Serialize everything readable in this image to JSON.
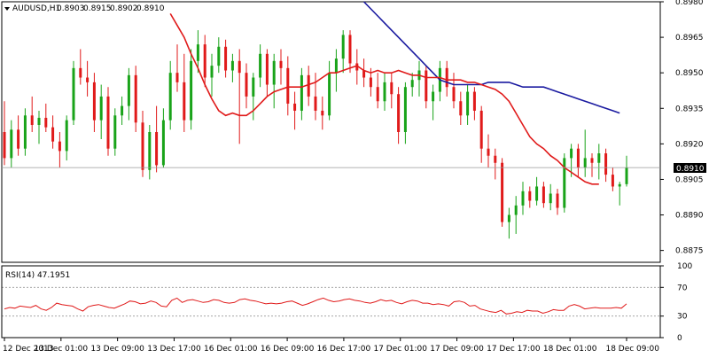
{
  "chart_data": {
    "type": "candlestick",
    "header": {
      "symbol": "AUDUSD,H1",
      "open": "0.8903",
      "high": "0.8915",
      "low": "0.8902",
      "close": "0.8910"
    },
    "price_axis": {
      "ylim": [
        0.887,
        0.898
      ],
      "ticks": [
        "0.8980",
        "0.8965",
        "0.8950",
        "0.8935",
        "0.8920",
        "0.8905",
        "0.8890",
        "0.8875"
      ]
    },
    "current_price": {
      "label": "0.8910",
      "value": 0.891
    },
    "x_labels": [
      "12 Dec 2013",
      "13 Dec 01:00",
      "13 Dec 09:00",
      "13 Dec 17:00",
      "16 Dec 01:00",
      "16 Dec 09:00",
      "16 Dec 17:00",
      "17 Dec 01:00",
      "17 Dec 09:00",
      "17 Dec 17:00",
      "18 Dec 01:00",
      "18 Dec 09:00"
    ],
    "colors": {
      "bull": "#19a319",
      "bear": "#e01a1a",
      "ma_fast": "#e01a1a",
      "ma_slow": "#1a1aa0",
      "rsi": "#e01a1a",
      "grid": "#999999"
    },
    "candles": [
      [
        0.8925,
        0.8938,
        0.8911,
        0.8914
      ],
      [
        0.8914,
        0.893,
        0.891,
        0.8926
      ],
      [
        0.8926,
        0.8932,
        0.8915,
        0.8918
      ],
      [
        0.8918,
        0.8935,
        0.8915,
        0.8932
      ],
      [
        0.8932,
        0.894,
        0.8925,
        0.8928
      ],
      [
        0.8928,
        0.8934,
        0.892,
        0.8931
      ],
      [
        0.8931,
        0.8937,
        0.8925,
        0.8927
      ],
      [
        0.8927,
        0.8932,
        0.8918,
        0.8921
      ],
      [
        0.8921,
        0.8925,
        0.891,
        0.8917
      ],
      [
        0.8917,
        0.8932,
        0.8913,
        0.893
      ],
      [
        0.893,
        0.8955,
        0.8928,
        0.8952
      ],
      [
        0.8952,
        0.896,
        0.8945,
        0.8948
      ],
      [
        0.8948,
        0.8955,
        0.894,
        0.8946
      ],
      [
        0.8946,
        0.895,
        0.8925,
        0.893
      ],
      [
        0.893,
        0.8945,
        0.8922,
        0.894
      ],
      [
        0.894,
        0.8944,
        0.8915,
        0.8918
      ],
      [
        0.8918,
        0.8935,
        0.8915,
        0.8932
      ],
      [
        0.8932,
        0.894,
        0.8928,
        0.8936
      ],
      [
        0.8936,
        0.8952,
        0.893,
        0.8949
      ],
      [
        0.8949,
        0.8953,
        0.8925,
        0.8929
      ],
      [
        0.8929,
        0.8934,
        0.8906,
        0.8909
      ],
      [
        0.8909,
        0.8928,
        0.8905,
        0.8925
      ],
      [
        0.8925,
        0.8936,
        0.8908,
        0.8911
      ],
      [
        0.8911,
        0.8935,
        0.891,
        0.893
      ],
      [
        0.893,
        0.8955,
        0.8926,
        0.895
      ],
      [
        0.895,
        0.8962,
        0.8942,
        0.8946
      ],
      [
        0.8946,
        0.8958,
        0.8925,
        0.893
      ],
      [
        0.893,
        0.896,
        0.8926,
        0.8955
      ],
      [
        0.8955,
        0.8968,
        0.895,
        0.8962
      ],
      [
        0.8962,
        0.8966,
        0.8944,
        0.8948
      ],
      [
        0.8948,
        0.8958,
        0.894,
        0.8953
      ],
      [
        0.8953,
        0.8965,
        0.895,
        0.8961
      ],
      [
        0.8961,
        0.8964,
        0.8948,
        0.8951
      ],
      [
        0.8951,
        0.8958,
        0.8946,
        0.8955
      ],
      [
        0.8955,
        0.896,
        0.892,
        0.895
      ],
      [
        0.895,
        0.8954,
        0.8935,
        0.894
      ],
      [
        0.894,
        0.895,
        0.893,
        0.8948
      ],
      [
        0.8948,
        0.8962,
        0.8944,
        0.8958
      ],
      [
        0.8958,
        0.896,
        0.894,
        0.8945
      ],
      [
        0.8945,
        0.8958,
        0.8935,
        0.8955
      ],
      [
        0.8955,
        0.896,
        0.8945,
        0.8952
      ],
      [
        0.8952,
        0.8957,
        0.8932,
        0.8937
      ],
      [
        0.8937,
        0.8942,
        0.8926,
        0.8934
      ],
      [
        0.8934,
        0.8952,
        0.893,
        0.8949
      ],
      [
        0.8949,
        0.8953,
        0.8936,
        0.894
      ],
      [
        0.894,
        0.895,
        0.893,
        0.8934
      ],
      [
        0.8934,
        0.894,
        0.8926,
        0.8932
      ],
      [
        0.8932,
        0.8955,
        0.893,
        0.895
      ],
      [
        0.895,
        0.896,
        0.8942,
        0.8956
      ],
      [
        0.8956,
        0.8968,
        0.895,
        0.8966
      ],
      [
        0.8966,
        0.8968,
        0.895,
        0.8954
      ],
      [
        0.8954,
        0.896,
        0.8945,
        0.8951
      ],
      [
        0.8951,
        0.8956,
        0.8944,
        0.8948
      ],
      [
        0.8948,
        0.8952,
        0.894,
        0.8944
      ],
      [
        0.8944,
        0.895,
        0.8935,
        0.8938
      ],
      [
        0.8938,
        0.895,
        0.8934,
        0.8946
      ],
      [
        0.8946,
        0.895,
        0.8935,
        0.8941
      ],
      [
        0.8941,
        0.8944,
        0.892,
        0.8925
      ],
      [
        0.8925,
        0.8946,
        0.892,
        0.8944
      ],
      [
        0.8944,
        0.895,
        0.894,
        0.8947
      ],
      [
        0.8947,
        0.8955,
        0.894,
        0.8951
      ],
      [
        0.8951,
        0.8953,
        0.8935,
        0.8938
      ],
      [
        0.8938,
        0.8945,
        0.893,
        0.8942
      ],
      [
        0.8942,
        0.8955,
        0.8938,
        0.8952
      ],
      [
        0.8952,
        0.8955,
        0.894,
        0.8944
      ],
      [
        0.8944,
        0.895,
        0.8935,
        0.8938
      ],
      [
        0.8938,
        0.8942,
        0.8928,
        0.8932
      ],
      [
        0.8932,
        0.8945,
        0.8928,
        0.8942
      ],
      [
        0.8942,
        0.8944,
        0.893,
        0.8934
      ],
      [
        0.8934,
        0.8936,
        0.8912,
        0.8918
      ],
      [
        0.8918,
        0.8924,
        0.891,
        0.8915
      ],
      [
        0.8915,
        0.8918,
        0.8905,
        0.8912
      ],
      [
        0.8912,
        0.8914,
        0.8885,
        0.8887
      ],
      [
        0.8887,
        0.8893,
        0.888,
        0.889
      ],
      [
        0.889,
        0.8898,
        0.8882,
        0.8894
      ],
      [
        0.8894,
        0.8904,
        0.889,
        0.89
      ],
      [
        0.89,
        0.8902,
        0.8893,
        0.8896
      ],
      [
        0.8896,
        0.8906,
        0.8894,
        0.8902
      ],
      [
        0.8902,
        0.8904,
        0.8893,
        0.8895
      ],
      [
        0.8895,
        0.8903,
        0.8892,
        0.8899
      ],
      [
        0.8899,
        0.8901,
        0.889,
        0.8893
      ],
      [
        0.8893,
        0.8916,
        0.8891,
        0.8914
      ],
      [
        0.8914,
        0.892,
        0.8906,
        0.8918
      ],
      [
        0.8918,
        0.892,
        0.8906,
        0.891
      ],
      [
        0.891,
        0.8926,
        0.8906,
        0.8914
      ],
      [
        0.8914,
        0.8916,
        0.8906,
        0.8912
      ],
      [
        0.8912,
        0.892,
        0.8905,
        0.8916
      ],
      [
        0.8916,
        0.8918,
        0.8904,
        0.8907
      ],
      [
        0.8907,
        0.891,
        0.89,
        0.8902
      ],
      [
        0.8902,
        0.8904,
        0.8894,
        0.8903
      ],
      [
        0.8903,
        0.8915,
        0.8902,
        0.891
      ]
    ],
    "ma_fast": [
      0.8975,
      0.897,
      0.8965,
      0.8958,
      0.8952,
      0.8945,
      0.8939,
      0.8934,
      0.8932,
      0.8933,
      0.8932,
      0.8932,
      0.8934,
      0.8937,
      0.894,
      0.8942,
      0.8943,
      0.8944,
      0.8944,
      0.8944,
      0.8945,
      0.8946,
      0.8948,
      0.895,
      0.895,
      0.8951,
      0.8952,
      0.8953,
      0.8951,
      0.895,
      0.8951,
      0.895,
      0.895,
      0.8951,
      0.895,
      0.8949,
      0.8949,
      0.8948,
      0.8948,
      0.8948,
      0.8947,
      0.8947,
      0.8947,
      0.8946,
      0.8946,
      0.8945,
      0.8944,
      0.8943,
      0.8941,
      0.8938,
      0.8933,
      0.8928,
      0.8923,
      0.892,
      0.8918,
      0.8915,
      0.8913,
      0.891,
      0.8908,
      0.8906,
      0.8904,
      0.8903,
      0.8903
    ],
    "ma_fast_start": 24,
    "ma_slow": [
      0.898,
      0.8977,
      0.8974,
      0.8971,
      0.8968,
      0.8965,
      0.8962,
      0.8959,
      0.8956,
      0.8953,
      0.895,
      0.8947,
      0.8946,
      0.8945,
      0.8945,
      0.8945,
      0.8945,
      0.8945,
      0.8946,
      0.8946,
      0.8946,
      0.8946,
      0.8945,
      0.8944,
      0.8944,
      0.8944,
      0.8944,
      0.8943,
      0.8942,
      0.8941,
      0.894,
      0.8939,
      0.8938,
      0.8937,
      0.8936,
      0.8935,
      0.8934,
      0.8933
    ],
    "ma_slow_start": 52,
    "rsi": {
      "label": "RSI(14) 47.1951",
      "ylim": [
        0,
        100
      ],
      "ticks": [
        "100",
        "70",
        "30",
        "0"
      ],
      "levels": [
        70,
        30
      ],
      "values": [
        40,
        42,
        41,
        44,
        43,
        42,
        45,
        40,
        38,
        42,
        48,
        46,
        45,
        44,
        40,
        37,
        43,
        45,
        46,
        44,
        42,
        41,
        44,
        47,
        51,
        50,
        47,
        48,
        51,
        49,
        44,
        43,
        52,
        55,
        49,
        52,
        53,
        51,
        49,
        50,
        53,
        52,
        49,
        48,
        49,
        53,
        54,
        52,
        51,
        49,
        47,
        48,
        47,
        48,
        50,
        51,
        48,
        45,
        47,
        50,
        53,
        55,
        52,
        50,
        51,
        53,
        54,
        52,
        51,
        49,
        48,
        50,
        53,
        51,
        52,
        49,
        47,
        50,
        52,
        51,
        48,
        48,
        46,
        47,
        46,
        44,
        50,
        51,
        49,
        44,
        45,
        40,
        38,
        36,
        35,
        38,
        33,
        34,
        36,
        35,
        38,
        37,
        37,
        34,
        36,
        39,
        38,
        38,
        44,
        46,
        44,
        40,
        41,
        42,
        41,
        41,
        41,
        42,
        41,
        47
      ]
    }
  }
}
